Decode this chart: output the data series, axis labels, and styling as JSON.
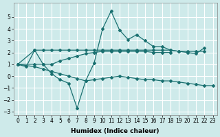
{
  "xlabel": "Humidex (Indice chaleur)",
  "xlim": [
    -0.5,
    23.5
  ],
  "ylim": [
    -3.3,
    6.2
  ],
  "yticks": [
    -3,
    -2,
    -1,
    0,
    1,
    2,
    3,
    4,
    5
  ],
  "xticks": [
    0,
    1,
    2,
    3,
    4,
    5,
    6,
    7,
    8,
    9,
    10,
    11,
    12,
    13,
    14,
    15,
    16,
    17,
    18,
    19,
    20,
    21,
    22,
    23
  ],
  "background_color": "#ceeaea",
  "grid_color": "#ffffff",
  "line_color": "#1a7070",
  "line1": {
    "x": [
      0,
      1,
      2,
      3,
      4,
      5,
      6,
      7,
      8,
      9,
      10,
      11,
      12,
      13,
      14,
      15,
      16,
      17,
      18,
      19,
      20,
      21,
      22
    ],
    "y": [
      1.0,
      0.8,
      2.2,
      1.0,
      0.2,
      -0.3,
      -0.6,
      -2.7,
      -0.4,
      1.1,
      4.0,
      5.5,
      3.9,
      3.1,
      3.5,
      3.0,
      2.5,
      2.5,
      2.2,
      2.1,
      2.0,
      1.9,
      2.4
    ]
  },
  "line2": {
    "x": [
      0,
      2,
      3,
      4,
      5,
      6,
      7,
      8,
      9,
      10,
      11,
      12,
      13,
      14,
      15,
      16,
      17,
      18,
      19,
      20,
      21,
      22
    ],
    "y": [
      1.0,
      2.2,
      2.2,
      2.2,
      2.2,
      2.2,
      2.2,
      2.2,
      2.2,
      2.2,
      2.2,
      2.2,
      2.2,
      2.2,
      2.2,
      2.2,
      2.2,
      2.2,
      2.1,
      2.1,
      2.1,
      2.1
    ]
  },
  "line3": {
    "x": [
      0,
      2,
      3,
      4,
      5,
      6,
      7,
      8,
      9,
      10,
      11,
      12,
      13,
      14,
      15,
      16,
      17,
      18
    ],
    "y": [
      1.0,
      1.0,
      1.0,
      1.0,
      1.3,
      1.5,
      1.7,
      1.9,
      2.0,
      2.1,
      2.1,
      2.1,
      2.1,
      2.1,
      2.1,
      2.0,
      2.0,
      2.0
    ]
  },
  "line4": {
    "x": [
      0,
      2,
      3,
      4,
      5,
      6,
      7,
      8,
      9,
      10,
      11,
      12,
      13,
      14,
      15,
      16,
      17,
      18,
      19,
      20,
      21,
      22,
      23
    ],
    "y": [
      1.0,
      0.8,
      0.6,
      0.4,
      0.2,
      0.0,
      -0.2,
      -0.4,
      -0.3,
      -0.2,
      -0.1,
      0.0,
      -0.1,
      -0.2,
      -0.3,
      -0.3,
      -0.4,
      -0.4,
      -0.5,
      -0.6,
      -0.7,
      -0.8,
      -0.8
    ]
  }
}
